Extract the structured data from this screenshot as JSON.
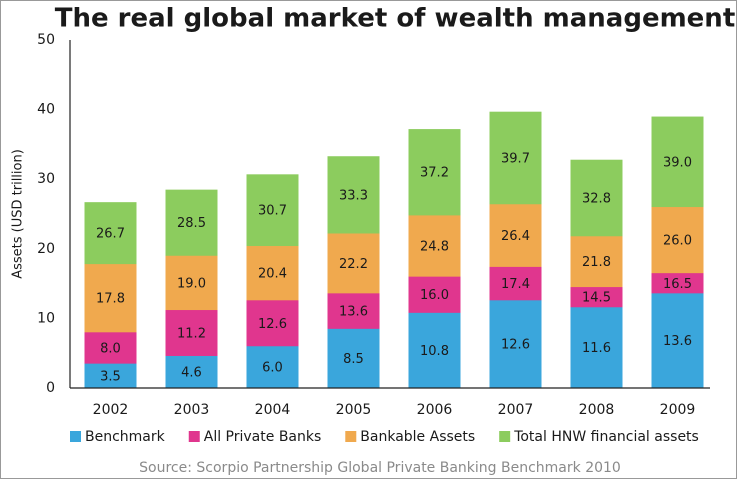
{
  "chart_data": {
    "type": "bar",
    "title": "The real global market of wealth management",
    "y_label": "Assets (USD trillion)",
    "source": "Source: Scorpio Partnership Global Private Banking Benchmark 2010",
    "categories": [
      "2002",
      "2003",
      "2004",
      "2005",
      "2006",
      "2007",
      "2008",
      "2009"
    ],
    "series": [
      {
        "name": "Benchmark",
        "color": "#3aa6dc",
        "values": [
          3.5,
          4.6,
          6.0,
          8.5,
          10.8,
          12.6,
          11.6,
          13.6
        ],
        "value_labels": [
          "3.5",
          "4.6",
          "6.0",
          "8.5",
          "10.8",
          "12.6",
          "11.6",
          "13.6"
        ]
      },
      {
        "name": "All Private Banks",
        "color": "#e0368e",
        "values": [
          8.0,
          11.2,
          12.6,
          13.6,
          16.0,
          17.4,
          14.5,
          16.5
        ],
        "value_labels": [
          "8.0",
          "11.2",
          "12.6",
          "13.6",
          "16.0",
          "17.4",
          "14.5",
          "16.5"
        ]
      },
      {
        "name": "Bankable Assets",
        "color": "#f0a94e",
        "values": [
          17.8,
          19.0,
          20.4,
          22.2,
          24.8,
          26.4,
          21.8,
          26.0
        ],
        "value_labels": [
          "17.8",
          "19.0",
          "20.4",
          "22.2",
          "24.8",
          "26.4",
          "21.8",
          "26.0"
        ]
      },
      {
        "name": "Total HNW financial assets",
        "color": "#8ccc5e",
        "values": [
          26.7,
          28.5,
          30.7,
          33.3,
          37.2,
          39.7,
          32.8,
          39.0
        ],
        "value_labels": [
          "26.7",
          "28.5",
          "30.7",
          "33.3",
          "37.2",
          "39.7",
          "32.8",
          "39.0"
        ]
      }
    ],
    "ylim": [
      0,
      50
    ],
    "yticks": [
      0,
      10,
      20,
      30,
      40,
      50
    ],
    "grid": false,
    "legend": "bottom"
  }
}
